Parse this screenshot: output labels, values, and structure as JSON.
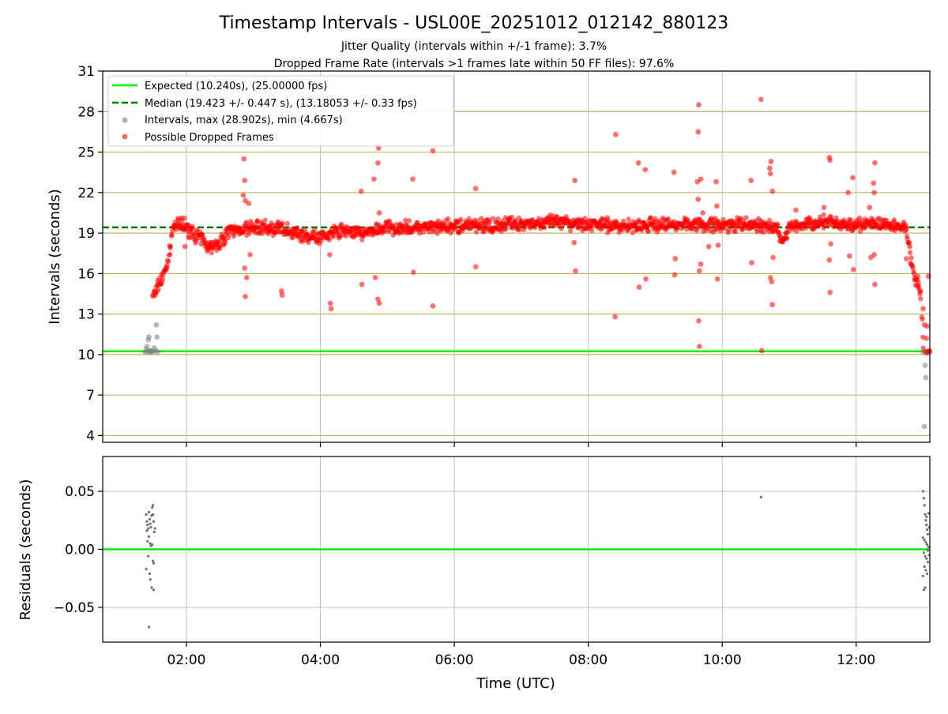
{
  "title": "Timestamp Intervals - USL00E_20251012_012142_880123",
  "subtitle_1": "Jitter Quality (intervals within +/-1 frame): 3.7%",
  "subtitle_2": "Dropped Frame Rate (intervals >1 frames late within 50 FF files): 97.6%",
  "colors": {
    "expected": "#00ee00",
    "median": "#008000",
    "intervals": "#808080",
    "dropped": "#ff0000",
    "hgrid": "#c8b060",
    "vgrid": "#c0c0c0"
  },
  "chart_data": [
    {
      "type": "scatter",
      "ylabel": "Intervals (seconds)",
      "xlabel": "",
      "xlim_hours": [
        0.75,
        13.1
      ],
      "ylim": [
        3.5,
        31
      ],
      "yticks": [
        4,
        7,
        10,
        13,
        16,
        19,
        22,
        25,
        28,
        31
      ],
      "ytick_labels": [
        "4",
        "7",
        "10",
        "13",
        "16",
        "19",
        "22",
        "25",
        "28",
        "31"
      ],
      "xticks_hours": [
        2,
        4,
        6,
        8,
        10,
        12
      ],
      "xtick_labels": [
        "02:00",
        "04:00",
        "06:00",
        "08:00",
        "10:00",
        "12:00"
      ],
      "grid": "horizontal gold lines at y ticks, vertical gray lines at x ticks",
      "legend_position": "top-left",
      "legend": [
        {
          "label": "Expected (10.240s), (25.00000 fps)",
          "style": "line"
        },
        {
          "label": "Median (19.423 +/- 0.447 s), (13.18053 +/- 0.33 fps)",
          "style": "dashed"
        },
        {
          "label": "Intervals, max (28.902s), min (4.667s)",
          "style": "gray-dot"
        },
        {
          "label": "Possible Dropped Frames",
          "style": "red-dot"
        }
      ],
      "expected_value": 10.24,
      "median_value": 19.423,
      "band_trend": [
        [
          1.5,
          14.2
        ],
        [
          1.55,
          14.8
        ],
        [
          1.6,
          15.3
        ],
        [
          1.65,
          15.8
        ],
        [
          1.7,
          16.4
        ],
        [
          1.75,
          17.6
        ],
        [
          1.8,
          19.5
        ],
        [
          1.9,
          19.6
        ],
        [
          2.0,
          19.3
        ],
        [
          2.1,
          19.0
        ],
        [
          2.2,
          18.6
        ],
        [
          2.3,
          18.2
        ],
        [
          2.4,
          18.0
        ],
        [
          2.5,
          18.3
        ],
        [
          2.6,
          18.9
        ],
        [
          2.7,
          19.2
        ],
        [
          2.8,
          19.3
        ],
        [
          3.0,
          19.4
        ],
        [
          3.2,
          19.4
        ],
        [
          3.4,
          19.3
        ],
        [
          3.6,
          19.1
        ],
        [
          3.8,
          18.8
        ],
        [
          4.0,
          18.7
        ],
        [
          4.2,
          19.0
        ],
        [
          4.4,
          19.2
        ],
        [
          4.6,
          19.0
        ],
        [
          4.8,
          19.2
        ],
        [
          5.0,
          19.4
        ],
        [
          5.5,
          19.4
        ],
        [
          6.0,
          19.5
        ],
        [
          6.5,
          19.6
        ],
        [
          7.0,
          19.7
        ],
        [
          7.5,
          19.8
        ],
        [
          8.0,
          19.7
        ],
        [
          8.5,
          19.5
        ],
        [
          9.0,
          19.6
        ],
        [
          9.5,
          19.7
        ],
        [
          10.0,
          19.6
        ],
        [
          10.5,
          19.6
        ],
        [
          10.8,
          19.4
        ],
        [
          10.9,
          18.4
        ],
        [
          11.0,
          19.4
        ],
        [
          11.2,
          19.6
        ],
        [
          11.5,
          19.8
        ],
        [
          11.8,
          19.7
        ],
        [
          12.1,
          19.6
        ],
        [
          12.5,
          19.6
        ],
        [
          12.75,
          19.4
        ],
        [
          12.78,
          18.2
        ],
        [
          12.82,
          17.0
        ],
        [
          12.86,
          15.8
        ],
        [
          12.92,
          15.3
        ],
        [
          12.97,
          14.2
        ],
        [
          13.0,
          11.0
        ]
      ],
      "gray_points": [
        [
          1.38,
          10.2
        ],
        [
          1.4,
          10.4
        ],
        [
          1.41,
          10.6
        ],
        [
          1.42,
          10.2
        ],
        [
          1.43,
          11.1
        ],
        [
          1.44,
          11.3
        ],
        [
          1.45,
          10.3
        ],
        [
          1.46,
          10.2
        ],
        [
          1.47,
          10.2
        ],
        [
          1.48,
          10.3
        ],
        [
          1.5,
          10.2
        ],
        [
          1.52,
          10.5
        ],
        [
          1.54,
          10.3
        ],
        [
          1.55,
          12.2
        ],
        [
          1.56,
          11.3
        ],
        [
          1.57,
          10.2
        ],
        [
          13.0,
          10.2
        ],
        [
          13.01,
          10.3
        ],
        [
          13.03,
          9.2
        ],
        [
          13.04,
          8.3
        ],
        [
          13.05,
          10.1
        ],
        [
          13.02,
          4.667
        ],
        [
          13.06,
          10.2
        ]
      ],
      "red_outliers": [
        [
          2.86,
          24.5
        ],
        [
          2.87,
          22.9
        ],
        [
          2.85,
          21.8
        ],
        [
          2.88,
          21.4
        ],
        [
          2.93,
          21.2
        ],
        [
          2.87,
          16.4
        ],
        [
          2.9,
          15.7
        ],
        [
          2.88,
          14.3
        ],
        [
          2.95,
          17.4
        ],
        [
          3.42,
          14.7
        ],
        [
          3.43,
          14.4
        ],
        [
          4.15,
          13.8
        ],
        [
          4.16,
          13.4
        ],
        [
          4.14,
          17.4
        ],
        [
          4.61,
          22.1
        ],
        [
          4.62,
          15.2
        ],
        [
          4.8,
          23.0
        ],
        [
          4.82,
          15.7
        ],
        [
          4.87,
          25.3
        ],
        [
          4.86,
          24.2
        ],
        [
          4.88,
          20.5
        ],
        [
          4.86,
          14.1
        ],
        [
          4.88,
          13.8
        ],
        [
          5.38,
          23.0
        ],
        [
          5.39,
          16.1
        ],
        [
          5.68,
          25.1
        ],
        [
          5.68,
          13.6
        ],
        [
          6.32,
          22.3
        ],
        [
          6.32,
          16.5
        ],
        [
          7.8,
          22.9
        ],
        [
          7.81,
          16.2
        ],
        [
          7.79,
          18.3
        ],
        [
          8.41,
          26.3
        ],
        [
          8.4,
          12.8
        ],
        [
          8.75,
          24.2
        ],
        [
          8.76,
          15.0
        ],
        [
          8.85,
          23.7
        ],
        [
          8.86,
          15.6
        ],
        [
          9.28,
          23.5
        ],
        [
          9.29,
          15.9
        ],
        [
          9.3,
          17.1
        ],
        [
          9.65,
          28.5
        ],
        [
          9.64,
          26.5
        ],
        [
          9.63,
          22.8
        ],
        [
          9.64,
          21.5
        ],
        [
          9.71,
          20.5
        ],
        [
          9.68,
          16.7
        ],
        [
          9.66,
          16.2
        ],
        [
          9.65,
          12.5
        ],
        [
          9.66,
          10.6
        ],
        [
          9.68,
          23.0
        ],
        [
          9.8,
          18.0
        ],
        [
          9.91,
          22.8
        ],
        [
          9.92,
          21.0
        ],
        [
          9.93,
          15.6
        ],
        [
          9.94,
          18.1
        ],
        [
          10.43,
          22.9
        ],
        [
          10.44,
          16.8
        ],
        [
          10.58,
          28.9
        ],
        [
          10.59,
          10.3
        ],
        [
          10.71,
          23.8
        ],
        [
          10.73,
          24.3
        ],
        [
          10.72,
          23.4
        ],
        [
          10.75,
          22.1
        ],
        [
          10.74,
          15.4
        ],
        [
          10.72,
          15.7
        ],
        [
          10.75,
          13.7
        ],
        [
          10.76,
          17.2
        ],
        [
          11.1,
          20.7
        ],
        [
          11.52,
          20.9
        ],
        [
          11.6,
          24.6
        ],
        [
          11.61,
          24.4
        ],
        [
          11.62,
          18.2
        ],
        [
          11.6,
          17.0
        ],
        [
          11.61,
          14.6
        ],
        [
          11.88,
          22.0
        ],
        [
          11.9,
          17.3
        ],
        [
          11.95,
          23.1
        ],
        [
          11.96,
          16.3
        ],
        [
          12.2,
          20.9
        ],
        [
          12.22,
          17.2
        ],
        [
          12.26,
          22.7
        ],
        [
          12.27,
          22.0
        ],
        [
          12.28,
          24.2
        ],
        [
          12.27,
          17.4
        ],
        [
          12.28,
          15.2
        ],
        [
          12.75,
          17.1
        ],
        [
          12.8,
          18.0
        ],
        [
          12.92,
          15.8
        ],
        [
          13.0,
          13.4
        ],
        [
          13.02,
          12.2
        ],
        [
          13.05,
          11.2
        ],
        [
          13.06,
          12.1
        ],
        [
          13.08,
          15.8
        ],
        [
          13.1,
          10.2
        ],
        [
          13.04,
          10.2
        ],
        [
          13.07,
          10.2
        ],
        [
          13.09,
          10.3
        ],
        [
          1.98,
          18.0
        ],
        [
          1.97,
          20.1
        ],
        [
          2.35,
          17.9
        ],
        [
          3.05,
          19.8
        ]
      ]
    },
    {
      "type": "scatter",
      "ylabel": "Residuals (seconds)",
      "xlabel": "Time (UTC)",
      "xlim_hours": [
        0.75,
        13.1
      ],
      "ylim": [
        -0.08,
        0.08
      ],
      "yticks": [
        -0.05,
        0.0,
        0.05
      ],
      "ytick_labels": [
        "−0.05",
        "0.00",
        "0.05"
      ],
      "xticks_hours": [
        2,
        4,
        6,
        8,
        10,
        12
      ],
      "xtick_labels": [
        "02:00",
        "04:00",
        "06:00",
        "08:00",
        "10:00",
        "12:00"
      ],
      "grid": "on",
      "zero_line": 0.0,
      "points": [
        [
          1.4,
          0.03
        ],
        [
          1.41,
          0.024
        ],
        [
          1.42,
          0.021
        ],
        [
          1.43,
          0.018
        ],
        [
          1.44,
          0.032
        ],
        [
          1.45,
          0.026
        ],
        [
          1.46,
          0.022
        ],
        [
          1.47,
          0.019
        ],
        [
          1.48,
          0.029
        ],
        [
          1.49,
          0.036
        ],
        [
          1.5,
          0.038
        ],
        [
          1.51,
          0.024
        ],
        [
          1.52,
          0.015
        ],
        [
          1.53,
          0.018
        ],
        [
          1.41,
          0.016
        ],
        [
          1.44,
          0.011
        ],
        [
          1.46,
          0.005
        ],
        [
          1.47,
          0.003
        ],
        [
          1.49,
          0.004
        ],
        [
          1.5,
          -0.01
        ],
        [
          1.51,
          -0.012
        ],
        [
          1.43,
          -0.006
        ],
        [
          1.4,
          -0.017
        ],
        [
          1.45,
          -0.021
        ],
        [
          1.46,
          -0.026
        ],
        [
          1.48,
          -0.033
        ],
        [
          1.51,
          -0.035
        ],
        [
          1.44,
          -0.067
        ],
        [
          1.42,
          0.007
        ],
        [
          1.5,
          0.03
        ],
        [
          10.58,
          0.045
        ],
        [
          13.0,
          0.05
        ],
        [
          13.01,
          0.044
        ],
        [
          13.02,
          0.038
        ],
        [
          13.03,
          0.03
        ],
        [
          13.04,
          0.025
        ],
        [
          13.05,
          0.021
        ],
        [
          13.06,
          0.017
        ],
        [
          13.07,
          0.013
        ],
        [
          13.0,
          0.01
        ],
        [
          13.02,
          0.008
        ],
        [
          13.04,
          0.006
        ],
        [
          13.06,
          0.004
        ],
        [
          13.08,
          0.002
        ],
        [
          13.01,
          -0.003
        ],
        [
          13.03,
          -0.006
        ],
        [
          13.05,
          -0.008
        ],
        [
          13.07,
          -0.011
        ],
        [
          13.02,
          -0.015
        ],
        [
          13.04,
          -0.018
        ],
        [
          13.06,
          -0.021
        ],
        [
          13.0,
          -0.023
        ],
        [
          13.03,
          -0.033
        ],
        [
          13.01,
          -0.035
        ],
        [
          13.08,
          0.031
        ],
        [
          13.09,
          0.019
        ],
        [
          13.05,
          0.028
        ],
        [
          13.07,
          -0.001
        ],
        [
          13.09,
          -0.005
        ]
      ]
    }
  ]
}
